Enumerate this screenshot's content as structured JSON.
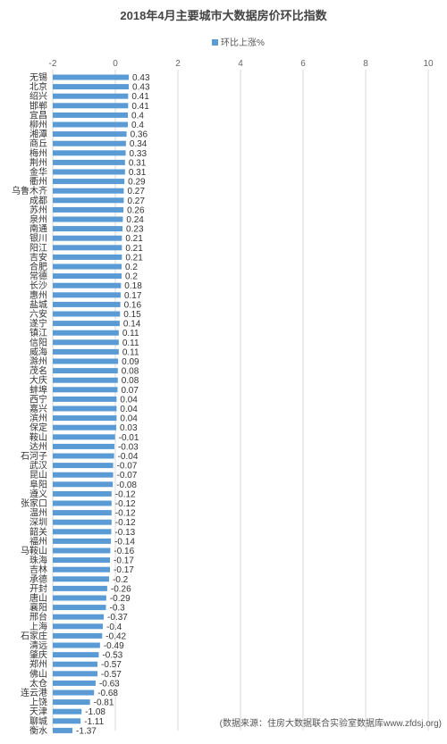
{
  "chart_data": {
    "type": "bar",
    "orientation": "horizontal",
    "title": "2018年4月主要城市大数据房价环比指数",
    "series": [
      {
        "name": "环比上涨%",
        "color": "#5b9bd5",
        "values": [
          0.43,
          0.43,
          0.41,
          0.41,
          0.4,
          0.4,
          0.36,
          0.34,
          0.33,
          0.31,
          0.31,
          0.29,
          0.27,
          0.27,
          0.26,
          0.24,
          0.23,
          0.21,
          0.21,
          0.21,
          0.2,
          0.2,
          0.18,
          0.17,
          0.16,
          0.15,
          0.14,
          0.11,
          0.11,
          0.11,
          0.09,
          0.08,
          0.08,
          0.07,
          0.04,
          0.04,
          0.04,
          0.03,
          -0.01,
          -0.03,
          -0.04,
          -0.07,
          -0.07,
          -0.08,
          -0.12,
          -0.12,
          -0.12,
          -0.12,
          -0.13,
          -0.14,
          -0.16,
          -0.17,
          -0.17,
          -0.2,
          -0.26,
          -0.29,
          -0.3,
          -0.37,
          -0.4,
          -0.42,
          -0.49,
          -0.53,
          -0.57,
          -0.57,
          -0.63,
          -0.68,
          -0.81,
          -1.08,
          -1.11,
          -1.37
        ]
      }
    ],
    "data_labels": [
      "0.43",
      "0.43",
      "0.41",
      "0.41",
      "0.4",
      "0.4",
      "0.36",
      "0.34",
      "0.33",
      "0.31",
      "0.31",
      "0.29",
      "0.27",
      "0.27",
      "0.26",
      "0.24",
      "0.23",
      "0.21",
      "0.21",
      "0.21",
      "0.2",
      "0.2",
      "0.18",
      "0.17",
      "0.16",
      "0.15",
      "0.14",
      "0.11",
      "0.11",
      "0.11",
      "0.09",
      "0.08",
      "0.08",
      "0.07",
      "0.04",
      "0.04",
      "0.04",
      "0.03",
      "-0.01",
      "-0.03",
      "-0.04",
      "-0.07",
      "-0.07",
      "-0.08",
      "-0.12",
      "-0.12",
      "-0.12",
      "-0.12",
      "-0.13",
      "-0.14",
      "-0.16",
      "-0.17",
      "-0.17",
      "-0.2",
      "-0.26",
      "-0.29",
      "-0.3",
      "-0.37",
      "-0.4",
      "-0.42",
      "-0.49",
      "-0.53",
      "-0.57",
      "-0.57",
      "-0.63",
      "-0.68",
      "-0.81",
      "-1.08",
      "-1.11",
      "-1.37"
    ],
    "categories": [
      "无锡",
      "北京",
      "绍兴",
      "邯郸",
      "宜昌",
      "柳州",
      "湘潭",
      "商丘",
      "梅州",
      "荆州",
      "金华",
      "衢州",
      "乌鲁木齐",
      "成都",
      "苏州",
      "泉州",
      "南通",
      "银川",
      "阳江",
      "吉安",
      "合肥",
      "常德",
      "长沙",
      "惠州",
      "盐城",
      "六安",
      "遂宁",
      "镇江",
      "信阳",
      "威海",
      "滁州",
      "茂名",
      "大庆",
      "蚌埠",
      "西宁",
      "嘉兴",
      "滨州",
      "保定",
      "鞍山",
      "达州",
      "石河子",
      "武汉",
      "昆山",
      "阜阳",
      "遵义",
      "张家口",
      "温州",
      "深圳",
      "韶关",
      "福州",
      "马鞍山",
      "珠海",
      "吉林",
      "承德",
      "开封",
      "唐山",
      "襄阳",
      "邢台",
      "上海",
      "石家庄",
      "清远",
      "肇庆",
      "郑州",
      "佛山",
      "太仓",
      "连云港",
      "上饶",
      "天津",
      "聊城",
      "衡水"
    ],
    "xlim": [
      -2,
      10
    ],
    "x_ticks": [
      "-2",
      "0",
      "2",
      "4",
      "6",
      "8",
      "10"
    ],
    "grid": true,
    "legend_position": "top-right",
    "source_note": "(数据来源：住房大数据联合实验室数据库www.zfdsj.org)"
  }
}
